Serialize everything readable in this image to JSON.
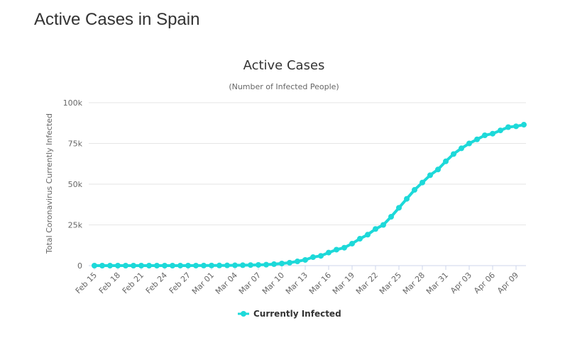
{
  "page": {
    "title": "Active Cases in Spain"
  },
  "chart_data": {
    "type": "line",
    "title": "Active Cases",
    "subtitle": "(Number of Infected People)",
    "xlabel": "",
    "ylabel": "Total Coronavirus Currently Infected",
    "ylim": [
      0,
      100000
    ],
    "yticks": [
      0,
      25000,
      50000,
      75000,
      100000
    ],
    "ytick_labels": [
      "0",
      "25k",
      "50k",
      "75k",
      "100k"
    ],
    "xtick_labels": [
      "Feb 15",
      "Feb 18",
      "Feb 21",
      "Feb 24",
      "Feb 27",
      "Mar 01",
      "Mar 04",
      "Mar 07",
      "Mar 10",
      "Mar 13",
      "Mar 16",
      "Mar 19",
      "Mar 22",
      "Mar 25",
      "Mar 28",
      "Mar 31",
      "Apr 03",
      "Apr 06",
      "Apr 09"
    ],
    "x": [
      "Feb 15",
      "Feb 16",
      "Feb 17",
      "Feb 18",
      "Feb 19",
      "Feb 20",
      "Feb 21",
      "Feb 22",
      "Feb 23",
      "Feb 24",
      "Feb 25",
      "Feb 26",
      "Feb 27",
      "Feb 28",
      "Feb 29",
      "Mar 01",
      "Mar 02",
      "Mar 03",
      "Mar 04",
      "Mar 05",
      "Mar 06",
      "Mar 07",
      "Mar 08",
      "Mar 09",
      "Mar 10",
      "Mar 11",
      "Mar 12",
      "Mar 13",
      "Mar 14",
      "Mar 15",
      "Mar 16",
      "Mar 17",
      "Mar 18",
      "Mar 19",
      "Mar 20",
      "Mar 21",
      "Mar 22",
      "Mar 23",
      "Mar 24",
      "Mar 25",
      "Mar 26",
      "Mar 27",
      "Mar 28",
      "Mar 29",
      "Mar 30",
      "Mar 31",
      "Apr 01",
      "Apr 02",
      "Apr 03",
      "Apr 04",
      "Apr 05",
      "Apr 06",
      "Apr 07",
      "Apr 08",
      "Apr 09",
      "Apr 10"
    ],
    "series": [
      {
        "name": "Currently Infected",
        "color": "#1dd9d9",
        "values": [
          2,
          2,
          2,
          2,
          2,
          2,
          2,
          2,
          2,
          2,
          4,
          11,
          13,
          23,
          38,
          70,
          100,
          140,
          200,
          250,
          350,
          450,
          600,
          900,
          1300,
          1800,
          2600,
          3500,
          5200,
          6000,
          8000,
          9800,
          11000,
          13500,
          16500,
          19000,
          22500,
          25000,
          30000,
          35500,
          41000,
          46500,
          51000,
          55500,
          59000,
          64000,
          68500,
          72000,
          75000,
          77500,
          80000,
          81000,
          83000,
          85000,
          85500,
          86500
        ]
      }
    ],
    "legend": {
      "position": "bottom"
    }
  }
}
